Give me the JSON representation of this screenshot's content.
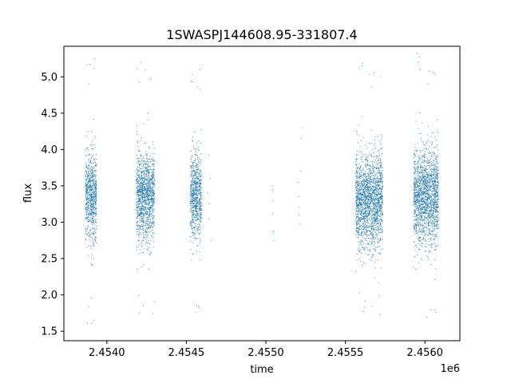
{
  "chart_data": {
    "type": "scatter",
    "title": "1SWASPJ144608.95-331807.4",
    "xlabel": "time",
    "ylabel": "flux",
    "x_offset_label": "1e6",
    "xlim": [
      2453730,
      2456220
    ],
    "ylim": [
      1.37,
      5.42
    ],
    "x_ticks": [
      2454000,
      2454500,
      2455000,
      2455500,
      2456000
    ],
    "x_tick_labels": [
      "2.4540",
      "2.4545",
      "2.4550",
      "2.4555",
      "2.4560"
    ],
    "y_ticks": [
      1.5,
      2.0,
      2.5,
      3.0,
      3.5,
      4.0,
      4.5,
      5.0
    ],
    "y_tick_labels": [
      "1.5",
      "2.0",
      "2.5",
      "3.0",
      "3.5",
      "4.0",
      "4.5",
      "5.0"
    ],
    "grid": false,
    "marker_color": "#1f77b4",
    "seasons": [
      {
        "start": 2453866,
        "end": 2453935,
        "median": 3.35,
        "spread": 0.28,
        "min": 1.55,
        "max": 5.25
      },
      {
        "start": 2454186,
        "end": 2454300,
        "median": 3.35,
        "spread": 0.3,
        "min": 1.72,
        "max": 5.25
      },
      {
        "start": 2454526,
        "end": 2454595,
        "median": 3.35,
        "spread": 0.28,
        "min": 1.55,
        "max": 5.2
      },
      {
        "start": 2455565,
        "end": 2455735,
        "median": 3.3,
        "spread": 0.32,
        "min": 1.7,
        "max": 5.2
      },
      {
        "start": 2455930,
        "end": 2456085,
        "median": 3.35,
        "spread": 0.32,
        "min": 1.57,
        "max": 5.4
      }
    ],
    "isolated_points": [
      {
        "x": 2454640,
        "y": 3.92
      },
      {
        "x": 2454645,
        "y": 3.25
      },
      {
        "x": 2454650,
        "y": 3.6
      },
      {
        "x": 2454655,
        "y": 2.75
      },
      {
        "x": 2454635,
        "y": 3.4
      },
      {
        "x": 2454642,
        "y": 3.05
      },
      {
        "x": 2455040,
        "y": 3.5
      },
      {
        "x": 2455042,
        "y": 3.45
      },
      {
        "x": 2455045,
        "y": 3.3
      },
      {
        "x": 2455043,
        "y": 3.12
      },
      {
        "x": 2455048,
        "y": 2.88
      },
      {
        "x": 2455050,
        "y": 2.75
      },
      {
        "x": 2455041,
        "y": 3.42
      },
      {
        "x": 2455046,
        "y": 2.85
      },
      {
        "x": 2455200,
        "y": 3.55
      },
      {
        "x": 2455205,
        "y": 3.35
      },
      {
        "x": 2455210,
        "y": 3.2
      },
      {
        "x": 2455208,
        "y": 3.1
      },
      {
        "x": 2455215,
        "y": 2.98
      },
      {
        "x": 2455220,
        "y": 3.7
      },
      {
        "x": 2455225,
        "y": 4.3
      },
      {
        "x": 2455222,
        "y": 4.15
      }
    ]
  }
}
